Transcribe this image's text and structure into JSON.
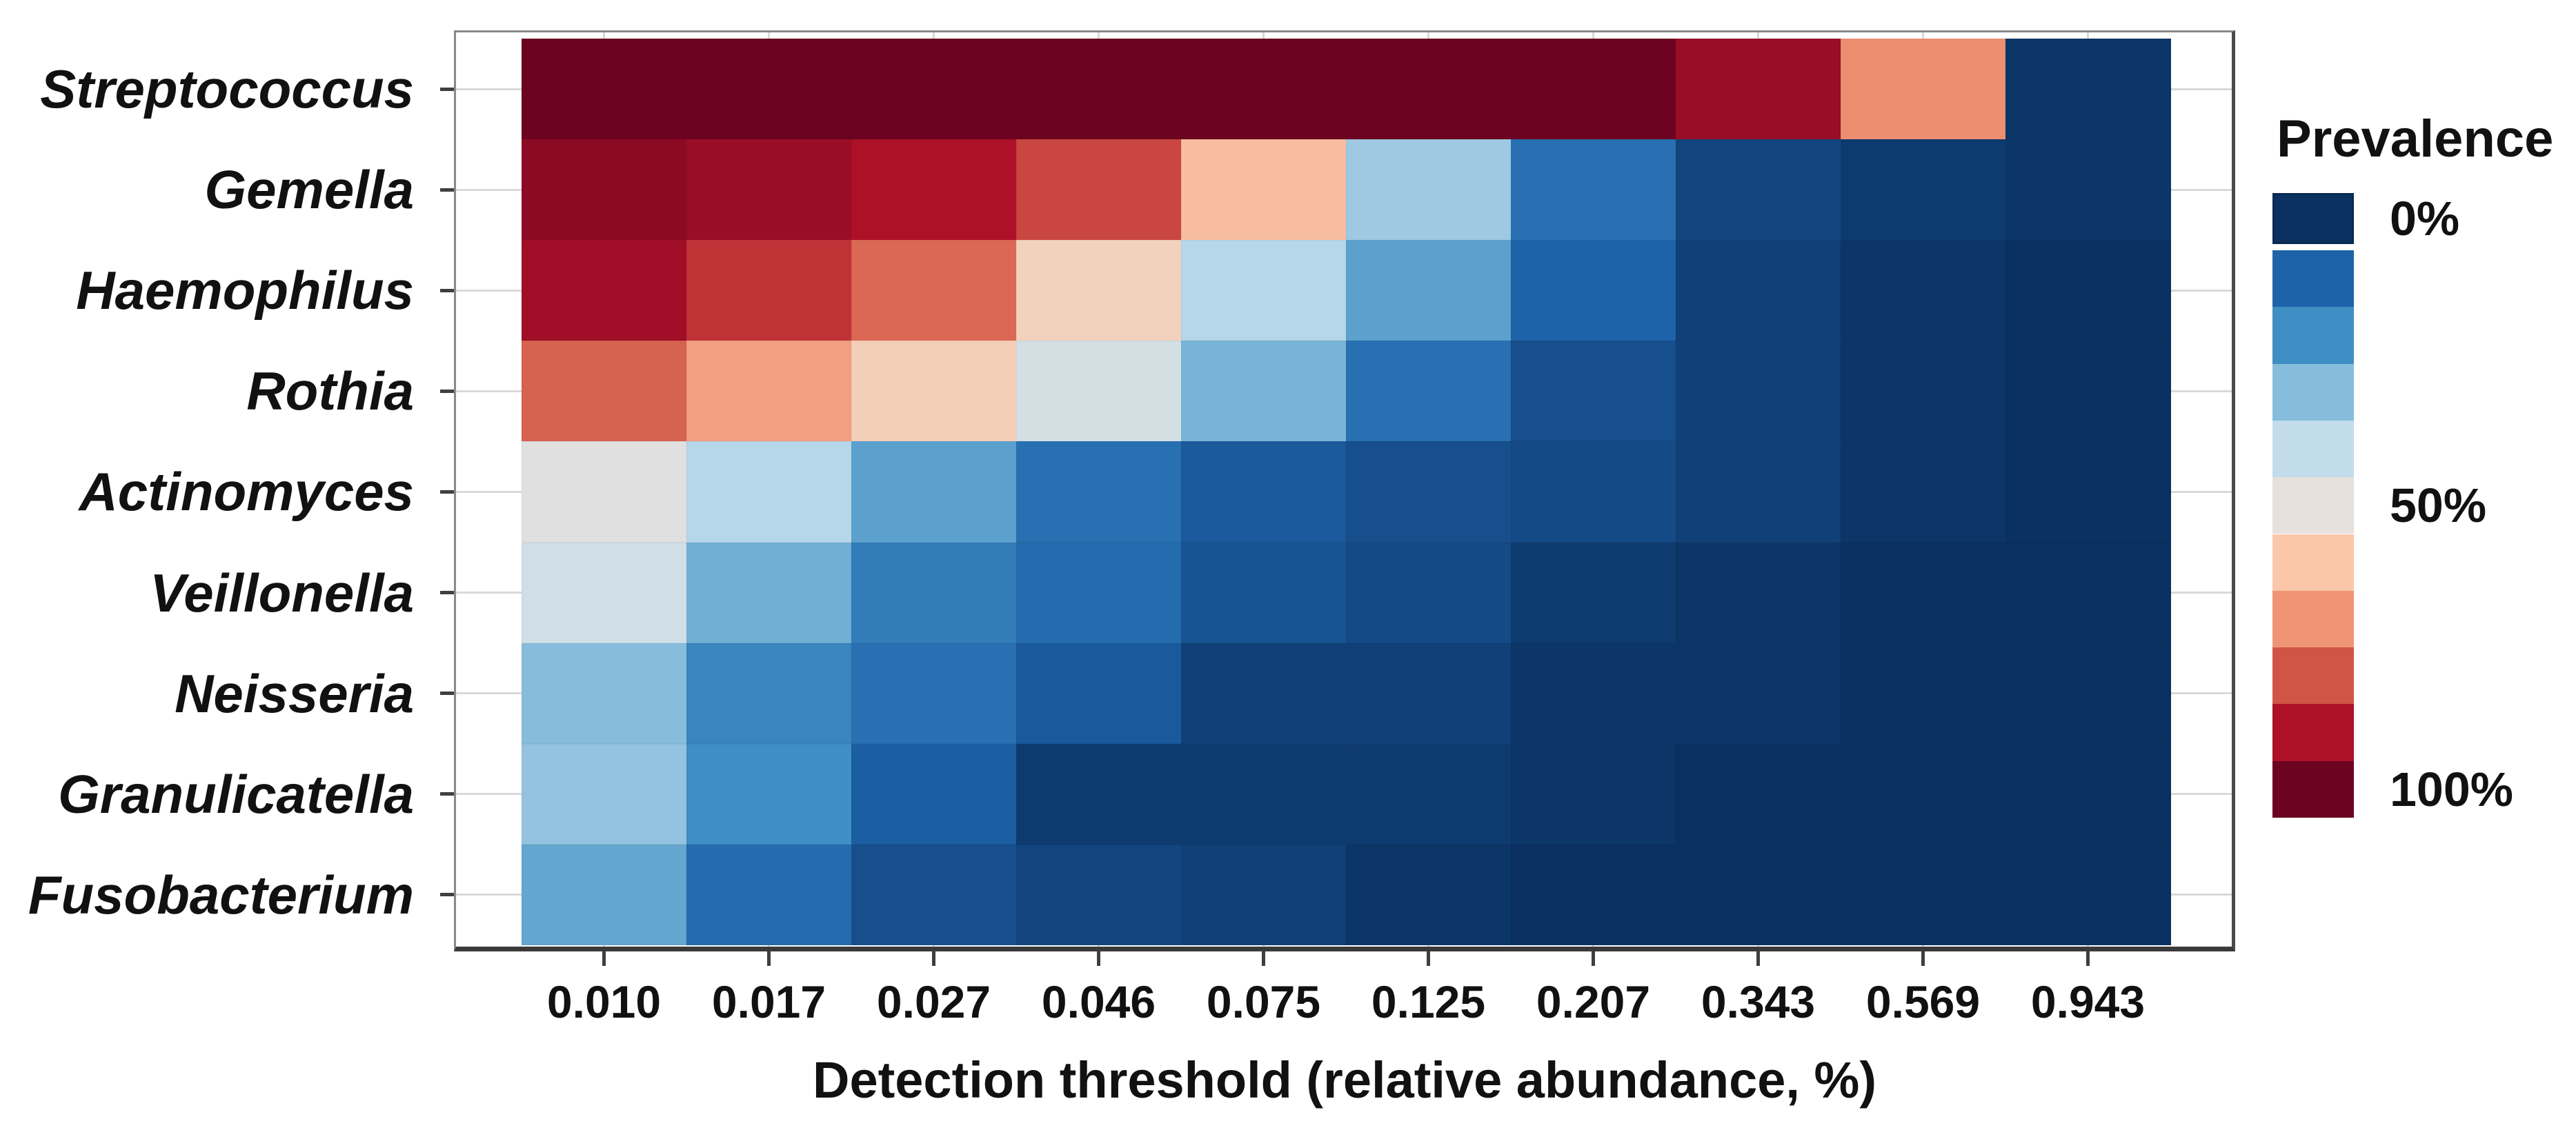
{
  "chart_data": {
    "type": "heatmap",
    "title": "",
    "xlabel": "Detection threshold (relative abundance, %)",
    "ylabel": "",
    "x_categories": [
      "0.010",
      "0.017",
      "0.027",
      "0.046",
      "0.075",
      "0.125",
      "0.207",
      "0.343",
      "0.569",
      "0.943"
    ],
    "y_categories": [
      "Streptococcus",
      "Gemella",
      "Haemophilus",
      "Rothia",
      "Actinomyces",
      "Veillonella",
      "Neisseria",
      "Granulicatella",
      "Fusobacterium"
    ],
    "series": [
      {
        "name": "Streptococcus",
        "values": [
          100,
          100,
          100,
          100,
          100,
          100,
          100,
          93,
          71,
          1
        ]
      },
      {
        "name": "Gemella",
        "values": [
          95,
          93,
          90,
          82,
          62,
          34,
          13,
          4,
          2,
          1
        ]
      },
      {
        "name": "Haemophilus",
        "values": [
          92,
          85,
          77,
          56,
          38,
          24,
          10,
          3,
          1,
          0
        ]
      },
      {
        "name": "Rothia",
        "values": [
          78,
          68,
          57,
          45,
          28,
          13,
          6,
          3,
          1,
          0
        ]
      },
      {
        "name": "Actinomyces",
        "values": [
          48,
          38,
          24,
          13,
          8,
          6,
          5,
          3,
          1,
          0
        ]
      },
      {
        "name": "Veillonella",
        "values": [
          44,
          27,
          16,
          12,
          7,
          5,
          2,
          1,
          0,
          0
        ]
      },
      {
        "name": "Neisseria",
        "values": [
          30,
          18,
          13,
          8,
          3,
          3,
          1,
          1,
          0,
          0
        ]
      },
      {
        "name": "Granulicatella",
        "values": [
          32,
          20,
          9,
          2,
          2,
          2,
          1,
          0,
          0,
          0
        ]
      },
      {
        "name": "Fusobacterium",
        "values": [
          25,
          12,
          6,
          4,
          3,
          1,
          0,
          0,
          0,
          0
        ]
      }
    ],
    "value_unit": "%",
    "value_range": [
      0,
      100
    ],
    "grid": true,
    "legend": {
      "title": "Prevalence",
      "position": "right",
      "bins": 11,
      "tick_labels": [
        "0%",
        "50%",
        "100%"
      ],
      "tick_bin_index": [
        0,
        5,
        10
      ]
    },
    "palette": {
      "name": "RdBu reversed (blue = 0%, red = 100%)",
      "stops": [
        "#0a3161",
        "#1e63a9",
        "#3f8ec4",
        "#87bddc",
        "#c2dcec",
        "#e6e1dc",
        "#fac7a8",
        "#f09476",
        "#d05546",
        "#ad1128",
        "#6c0321"
      ]
    }
  },
  "colors": {
    "background": "#ffffff",
    "panel_border": "#8a8a8a",
    "axis_line": "#3a3a3a",
    "tick": "#3f3f3f",
    "gridline": "#d9d9d9",
    "text": "#111111"
  }
}
